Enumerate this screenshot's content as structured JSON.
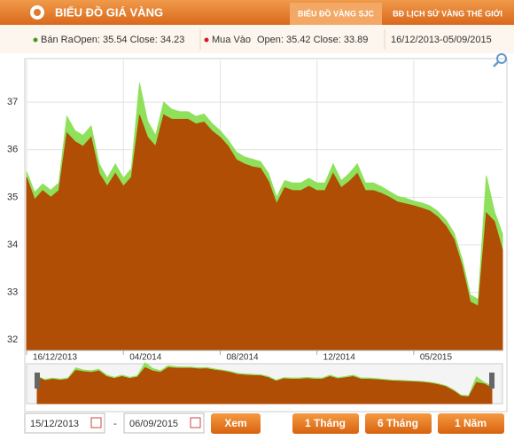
{
  "header": {
    "title": "BIỂU ĐỒ GIÁ VÀNG",
    "tabs": [
      "BIỂU ĐỒ VÀNG SJC",
      "BĐ LỊCH SỬ VÀNG THẾ GIỚI"
    ]
  },
  "info": {
    "sell_text": "Open: 35.54 Close: 34.23",
    "buy_text": "Open: 35.42 Close: 33.89",
    "range": "16/12/2013-05/09/2015"
  },
  "chart_data": {
    "type": "area",
    "categories": [
      "16/12/2013",
      null,
      null,
      null,
      null,
      null,
      null,
      null,
      null,
      null,
      null,
      null,
      "04/2014",
      null,
      null,
      null,
      null,
      null,
      null,
      null,
      null,
      null,
      null,
      null,
      "08/2014",
      null,
      null,
      null,
      null,
      null,
      null,
      null,
      null,
      null,
      null,
      null,
      "12/2014",
      null,
      null,
      null,
      null,
      null,
      null,
      null,
      null,
      null,
      null,
      null,
      "05/2015",
      null,
      null,
      null,
      null,
      null,
      null,
      null,
      null,
      null,
      null,
      null
    ],
    "series": [
      {
        "name": "Bán Ra",
        "color": "#8fe05a",
        "values": [
          35.54,
          35.1,
          35.28,
          35.15,
          35.3,
          36.7,
          36.4,
          36.3,
          36.5,
          35.7,
          35.4,
          35.7,
          35.4,
          35.6,
          37.4,
          36.6,
          36.3,
          37.0,
          36.85,
          36.8,
          36.8,
          36.7,
          36.75,
          36.55,
          36.4,
          36.2,
          35.95,
          35.85,
          35.8,
          35.75,
          35.5,
          35.0,
          35.35,
          35.3,
          35.3,
          35.4,
          35.3,
          35.3,
          35.7,
          35.35,
          35.5,
          35.7,
          35.3,
          35.3,
          35.22,
          35.12,
          35.02,
          34.98,
          34.92,
          34.88,
          34.82,
          34.7,
          34.52,
          34.25,
          33.7,
          32.95,
          32.85,
          35.45,
          34.7,
          34.23
        ]
      },
      {
        "name": "Mua Vào",
        "color": "#b04e05",
        "values": [
          35.42,
          34.95,
          35.14,
          35.0,
          35.14,
          36.35,
          36.17,
          36.07,
          36.26,
          35.5,
          35.23,
          35.5,
          35.23,
          35.42,
          36.73,
          36.26,
          36.07,
          36.73,
          36.64,
          36.64,
          36.64,
          36.54,
          36.58,
          36.39,
          36.26,
          36.07,
          35.79,
          35.7,
          35.64,
          35.61,
          35.33,
          34.86,
          35.2,
          35.14,
          35.14,
          35.23,
          35.14,
          35.14,
          35.5,
          35.2,
          35.33,
          35.5,
          35.14,
          35.14,
          35.08,
          35.0,
          34.9,
          34.86,
          34.82,
          34.77,
          34.71,
          34.58,
          34.39,
          34.11,
          33.55,
          32.8,
          32.71,
          34.67,
          34.49,
          33.89
        ]
      }
    ],
    "ylim": [
      31.78,
      37.88
    ],
    "yticks": [
      32,
      33,
      34,
      35,
      36,
      37
    ],
    "grid": true
  },
  "controls": {
    "from": "15/12/2013",
    "separator": "-",
    "to": "06/09/2015",
    "view": "Xem",
    "ranges": [
      "1 Tháng",
      "6 Tháng",
      "1 Năm"
    ]
  }
}
